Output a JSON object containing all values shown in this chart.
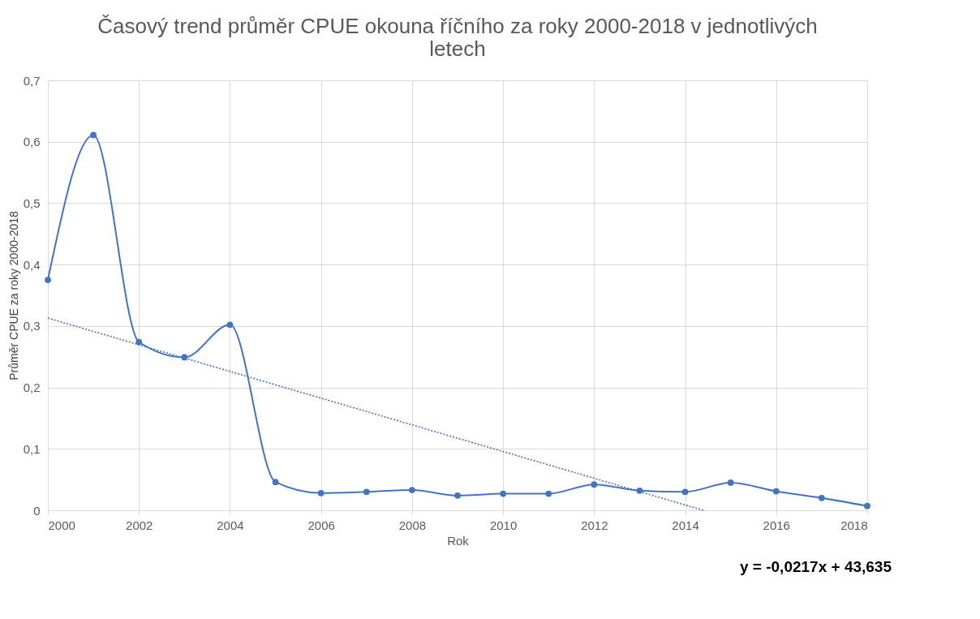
{
  "chart_data": {
    "type": "line",
    "title": "Časový trend průměr CPUE okouna říčního za roky 2000-2018 v jednotlivých letech",
    "xlabel": "Rok",
    "ylabel": "Průměr CPUE za roky 2000-2018",
    "x": [
      2000,
      2001,
      2002,
      2003,
      2004,
      2005,
      2006,
      2007,
      2008,
      2009,
      2010,
      2011,
      2012,
      2013,
      2014,
      2015,
      2016,
      2017,
      2018
    ],
    "series": [
      {
        "color": "#4472c4",
        "marker": "circle",
        "line_style": "solid",
        "values": [
          0.375,
          0.611,
          0.274,
          0.249,
          0.302,
          0.046,
          0.028,
          0.03,
          0.033,
          0.024,
          0.027,
          0.027,
          0.042,
          0.032,
          0.03,
          0.045,
          0.031,
          0.02,
          0.007
        ]
      },
      {
        "color": "#4472c4",
        "marker": "none",
        "line_style": "dotted",
        "x": [
          2000,
          2014.4
        ],
        "values": [
          0.313,
          0
        ]
      }
    ],
    "xlim": [
      2000,
      2018
    ],
    "xticks": [
      2000,
      2002,
      2004,
      2006,
      2008,
      2010,
      2012,
      2014,
      2016,
      2018
    ],
    "ylim": [
      0,
      0.7
    ],
    "yticks": [
      {
        "value": 0,
        "label": "0"
      },
      {
        "value": 0.1,
        "label": "0,1"
      },
      {
        "value": 0.2,
        "label": "0,2"
      },
      {
        "value": 0.3,
        "label": "0,3"
      },
      {
        "value": 0.4,
        "label": "0,4"
      },
      {
        "value": 0.5,
        "label": "0,5"
      },
      {
        "value": 0.6,
        "label": "0,6"
      },
      {
        "value": 0.7,
        "label": "0,7"
      }
    ],
    "grid": true,
    "annotations": [
      "y = -0,0217x + 43,635"
    ]
  }
}
